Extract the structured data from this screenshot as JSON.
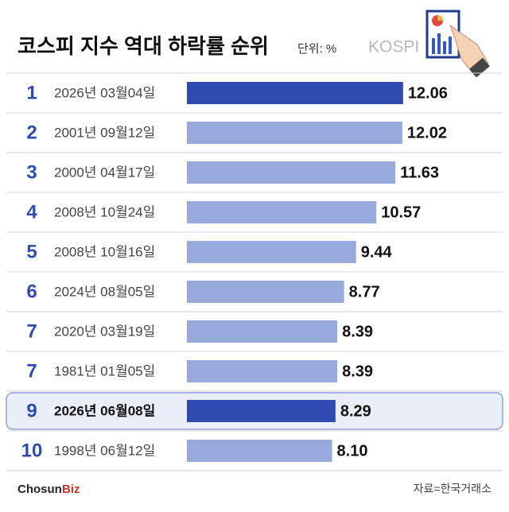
{
  "chart_data": {
    "type": "bar",
    "title": "코스피 지수 역대 하락률 순위",
    "unit": "단위: %",
    "brand": "KOSPI",
    "ranks": [
      1,
      2,
      3,
      4,
      5,
      6,
      7,
      7,
      9,
      10
    ],
    "categories": [
      "2026년 03월04일",
      "2001년 09월12일",
      "2000년 04월17일",
      "2008년 10월24일",
      "2008년 10월16일",
      "2024년 08월05일",
      "2020년 03월19일",
      "1981년 01월05일",
      "2026년 06월08일",
      "1998년 06월12일"
    ],
    "values": [
      12.06,
      12.02,
      11.63,
      10.57,
      9.44,
      8.77,
      8.39,
      8.39,
      8.29,
      8.1
    ],
    "value_labels": [
      "12.06",
      "12.02",
      "11.63",
      "10.57",
      "9.44",
      "8.77",
      "8.39",
      "8.39",
      "8.29",
      "8.10"
    ],
    "colors": [
      "#2f4bb0",
      "#98a9dc",
      "#98a9dc",
      "#98a9dc",
      "#98a9dc",
      "#98a9dc",
      "#98a9dc",
      "#98a9dc",
      "#2f4bb0",
      "#98a9dc"
    ],
    "boxed_rows": [
      8
    ],
    "xlim": [
      0,
      13
    ],
    "source": "자료=한국거래소",
    "logo": [
      "Chosun",
      "Biz"
    ]
  }
}
